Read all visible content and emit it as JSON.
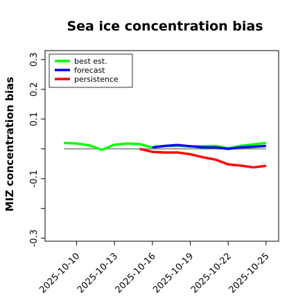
{
  "chart_data": {
    "type": "line",
    "title": "Sea ice concentration bias",
    "xlabel": "",
    "ylabel": "MIZ concentration bias",
    "ylim": [
      -0.31,
      0.33
    ],
    "yticks": [
      -0.3,
      -0.1,
      0.1,
      0.2,
      0.3
    ],
    "yticklabels": [
      "-0.3",
      "-0.1",
      "0.1",
      "0.2",
      "0.3"
    ],
    "yminor": [
      -0.2,
      0.0
    ],
    "xlim": [
      "2025-10-07T12",
      "2025-10-26"
    ],
    "xticks": [
      "2025-10-10",
      "2025-10-13",
      "2025-10-16",
      "2025-10-19",
      "2025-10-22",
      "2025-10-25"
    ],
    "xticklabels": [
      "2025-10-10",
      "2025-10-13",
      "2025-10-16",
      "2025-10-19",
      "2025-10-22",
      "2025-10-25"
    ],
    "highlight_tick": "2025-10-16",
    "highlight_color": "#228B22",
    "zero_line": true,
    "grid": false,
    "legend_position": "top-left",
    "series": [
      {
        "name": "best est.",
        "color": "#00ff00",
        "x": [
          "2025-10-09",
          "2025-10-10",
          "2025-10-11",
          "2025-10-12",
          "2025-10-13",
          "2025-10-14",
          "2025-10-15",
          "2025-10-16",
          "2025-10-17",
          "2025-10-18",
          "2025-10-19",
          "2025-10-20",
          "2025-10-21",
          "2025-10-22",
          "2025-10-23",
          "2025-10-24",
          "2025-10-25"
        ],
        "y": [
          0.02,
          0.018,
          0.012,
          -0.003,
          0.014,
          0.018,
          0.016,
          0.005,
          0.009,
          0.011,
          0.008,
          0.009,
          0.01,
          0.002,
          0.01,
          0.015,
          0.02
        ]
      },
      {
        "name": "forecast",
        "color": "#0000ff",
        "x": [
          "2025-10-16",
          "2025-10-17",
          "2025-10-18",
          "2025-10-19",
          "2025-10-20",
          "2025-10-21",
          "2025-10-22",
          "2025-10-23",
          "2025-10-24",
          "2025-10-25"
        ],
        "y": [
          0.005,
          0.01,
          0.013,
          0.009,
          0.005,
          0.005,
          0.0,
          0.005,
          0.007,
          0.01
        ]
      },
      {
        "name": "persistence",
        "color": "#ff0000",
        "x": [
          "2025-10-15",
          "2025-10-16",
          "2025-10-17",
          "2025-10-18",
          "2025-10-19",
          "2025-10-20",
          "2025-10-21",
          "2025-10-22",
          "2025-10-23",
          "2025-10-24",
          "2025-10-25"
        ],
        "y": [
          0.0,
          -0.01,
          -0.012,
          -0.012,
          -0.018,
          -0.028,
          -0.036,
          -0.052,
          -0.056,
          -0.062,
          -0.057
        ]
      }
    ]
  }
}
